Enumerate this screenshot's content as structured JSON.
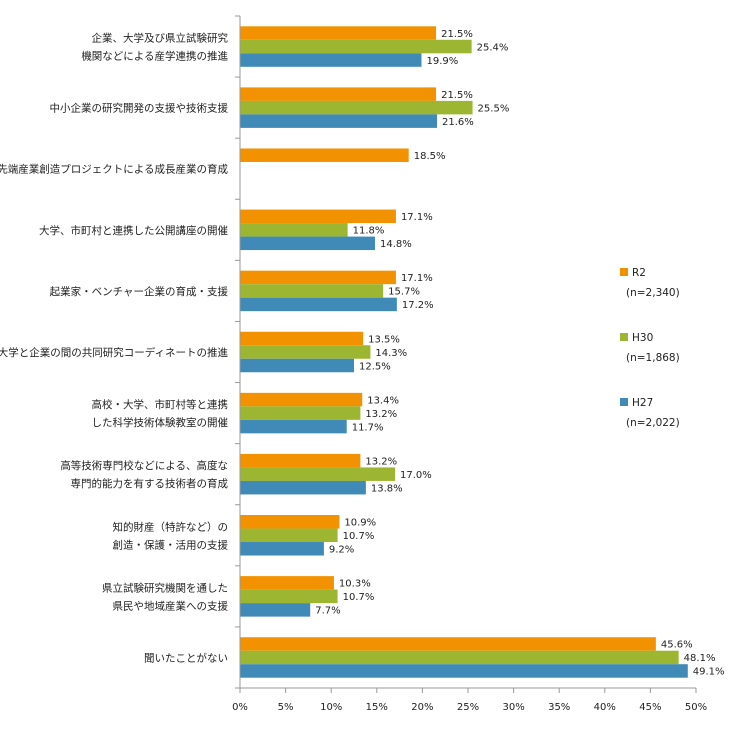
{
  "chart_data": {
    "type": "bar",
    "orientation": "horizontal",
    "categories": [
      [
        "企業、大学及び県立試験研究",
        "機関などによる産学連携の推進"
      ],
      [
        "中小企業の研究開発の支援や技術支援"
      ],
      [
        "先端産業創造プロジェクトによる成長産業の育成"
      ],
      [
        "大学、市町村と連携した公開講座の開催"
      ],
      [
        "起業家・ベンチャー企業の育成・支援"
      ],
      [
        "大学と企業の間の共同研究コーディネートの推進"
      ],
      [
        "高校・大学、市町村等と連携",
        "した科学技術体験教室の開催"
      ],
      [
        "高等技術専門校などによる、高度な",
        "専門的能力を有する技術者の育成"
      ],
      [
        "知的財産（特許など）の",
        "創造・保護・活用の支援"
      ],
      [
        "県立試験研究機関を通した",
        "県民や地域産業への支援"
      ],
      [
        "聞いたことがない"
      ]
    ],
    "series": [
      {
        "name": "R2",
        "note": "(n=2,340)",
        "color": "#F39200",
        "values": [
          21.5,
          21.5,
          18.5,
          17.1,
          17.1,
          13.5,
          13.4,
          13.2,
          10.9,
          10.3,
          45.6
        ],
        "labels": [
          "21.5%",
          "21.5%",
          "18.5%",
          "17.1%",
          "17.1%",
          "13.5%",
          "13.4%",
          "13.2%",
          "10.9%",
          "10.3%",
          "45.6%"
        ]
      },
      {
        "name": "H30",
        "note": "(n=1,868)",
        "color": "#9DB631",
        "values": [
          25.4,
          25.5,
          null,
          11.8,
          15.7,
          14.3,
          13.2,
          17.0,
          10.7,
          10.7,
          48.1
        ],
        "labels": [
          "25.4%",
          "25.5%",
          "",
          "11.8%",
          "15.7%",
          "14.3%",
          "13.2%",
          "17.0%",
          "10.7%",
          "10.7%",
          "48.1%"
        ]
      },
      {
        "name": "H27",
        "note": "(n=2,022)",
        "color": "#3F8AB7",
        "values": [
          19.9,
          21.6,
          null,
          14.8,
          17.2,
          12.5,
          11.7,
          13.8,
          9.2,
          7.7,
          49.1
        ],
        "labels": [
          "19.9%",
          "21.6%",
          "",
          "14.8%",
          "17.2%",
          "12.5%",
          "11.7%",
          "13.8%",
          "9.2%",
          "7.7%",
          "49.1%"
        ]
      }
    ],
    "xlim": [
      0,
      50
    ],
    "xticks": [
      "0%",
      "5%",
      "10%",
      "15%",
      "20%",
      "25%",
      "30%",
      "35%",
      "40%",
      "45%",
      "50%"
    ],
    "grid": false,
    "legend_position": "right"
  }
}
